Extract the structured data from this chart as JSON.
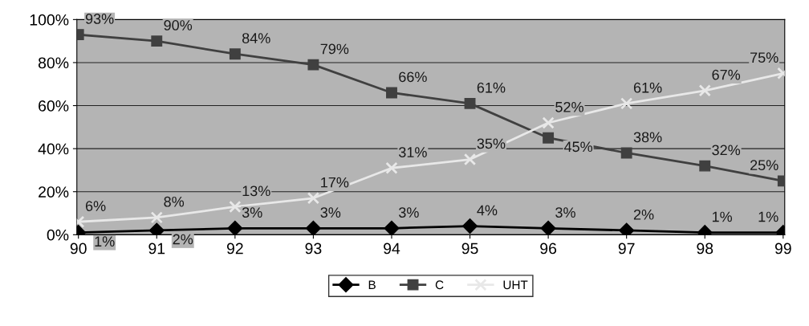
{
  "chart_data": {
    "type": "line",
    "categories": [
      "90",
      "91",
      "92",
      "93",
      "94",
      "95",
      "96",
      "97",
      "98",
      "99"
    ],
    "series": [
      {
        "name": "B",
        "color": "#000000",
        "marker": "diamond",
        "values": [
          1,
          2,
          3,
          3,
          3,
          4,
          3,
          2,
          1,
          1
        ],
        "value_labels": [
          "1%",
          "2%",
          "3%",
          "3%",
          "3%",
          "4%",
          "3%",
          "2%",
          "1%",
          "1%"
        ]
      },
      {
        "name": "C",
        "color": "#404040",
        "marker": "square",
        "values": [
          93,
          90,
          84,
          79,
          66,
          61,
          45,
          38,
          32,
          25
        ],
        "value_labels": [
          "93%",
          "90%",
          "84%",
          "79%",
          "66%",
          "61%",
          "45%",
          "38%",
          "32%",
          "25%"
        ]
      },
      {
        "name": "UHT",
        "color": "#e8e8e8",
        "marker": "cross",
        "values": [
          6,
          8,
          13,
          17,
          31,
          35,
          52,
          61,
          67,
          75
        ],
        "value_labels": [
          "6%",
          "8%",
          "13%",
          "17%",
          "31%",
          "35%",
          "52%",
          "61%",
          "67%",
          "75%"
        ]
      }
    ],
    "ylim": [
      0,
      100
    ],
    "yticks": [
      {
        "value": 0,
        "label": "0%"
      },
      {
        "value": 20,
        "label": "20%"
      },
      {
        "value": 40,
        "label": "40%"
      },
      {
        "value": 60,
        "label": "60%"
      },
      {
        "value": 80,
        "label": "80%"
      },
      {
        "value": 100,
        "label": "100%"
      }
    ],
    "grid": "y",
    "legend": "bottom",
    "line_style": "solid"
  }
}
